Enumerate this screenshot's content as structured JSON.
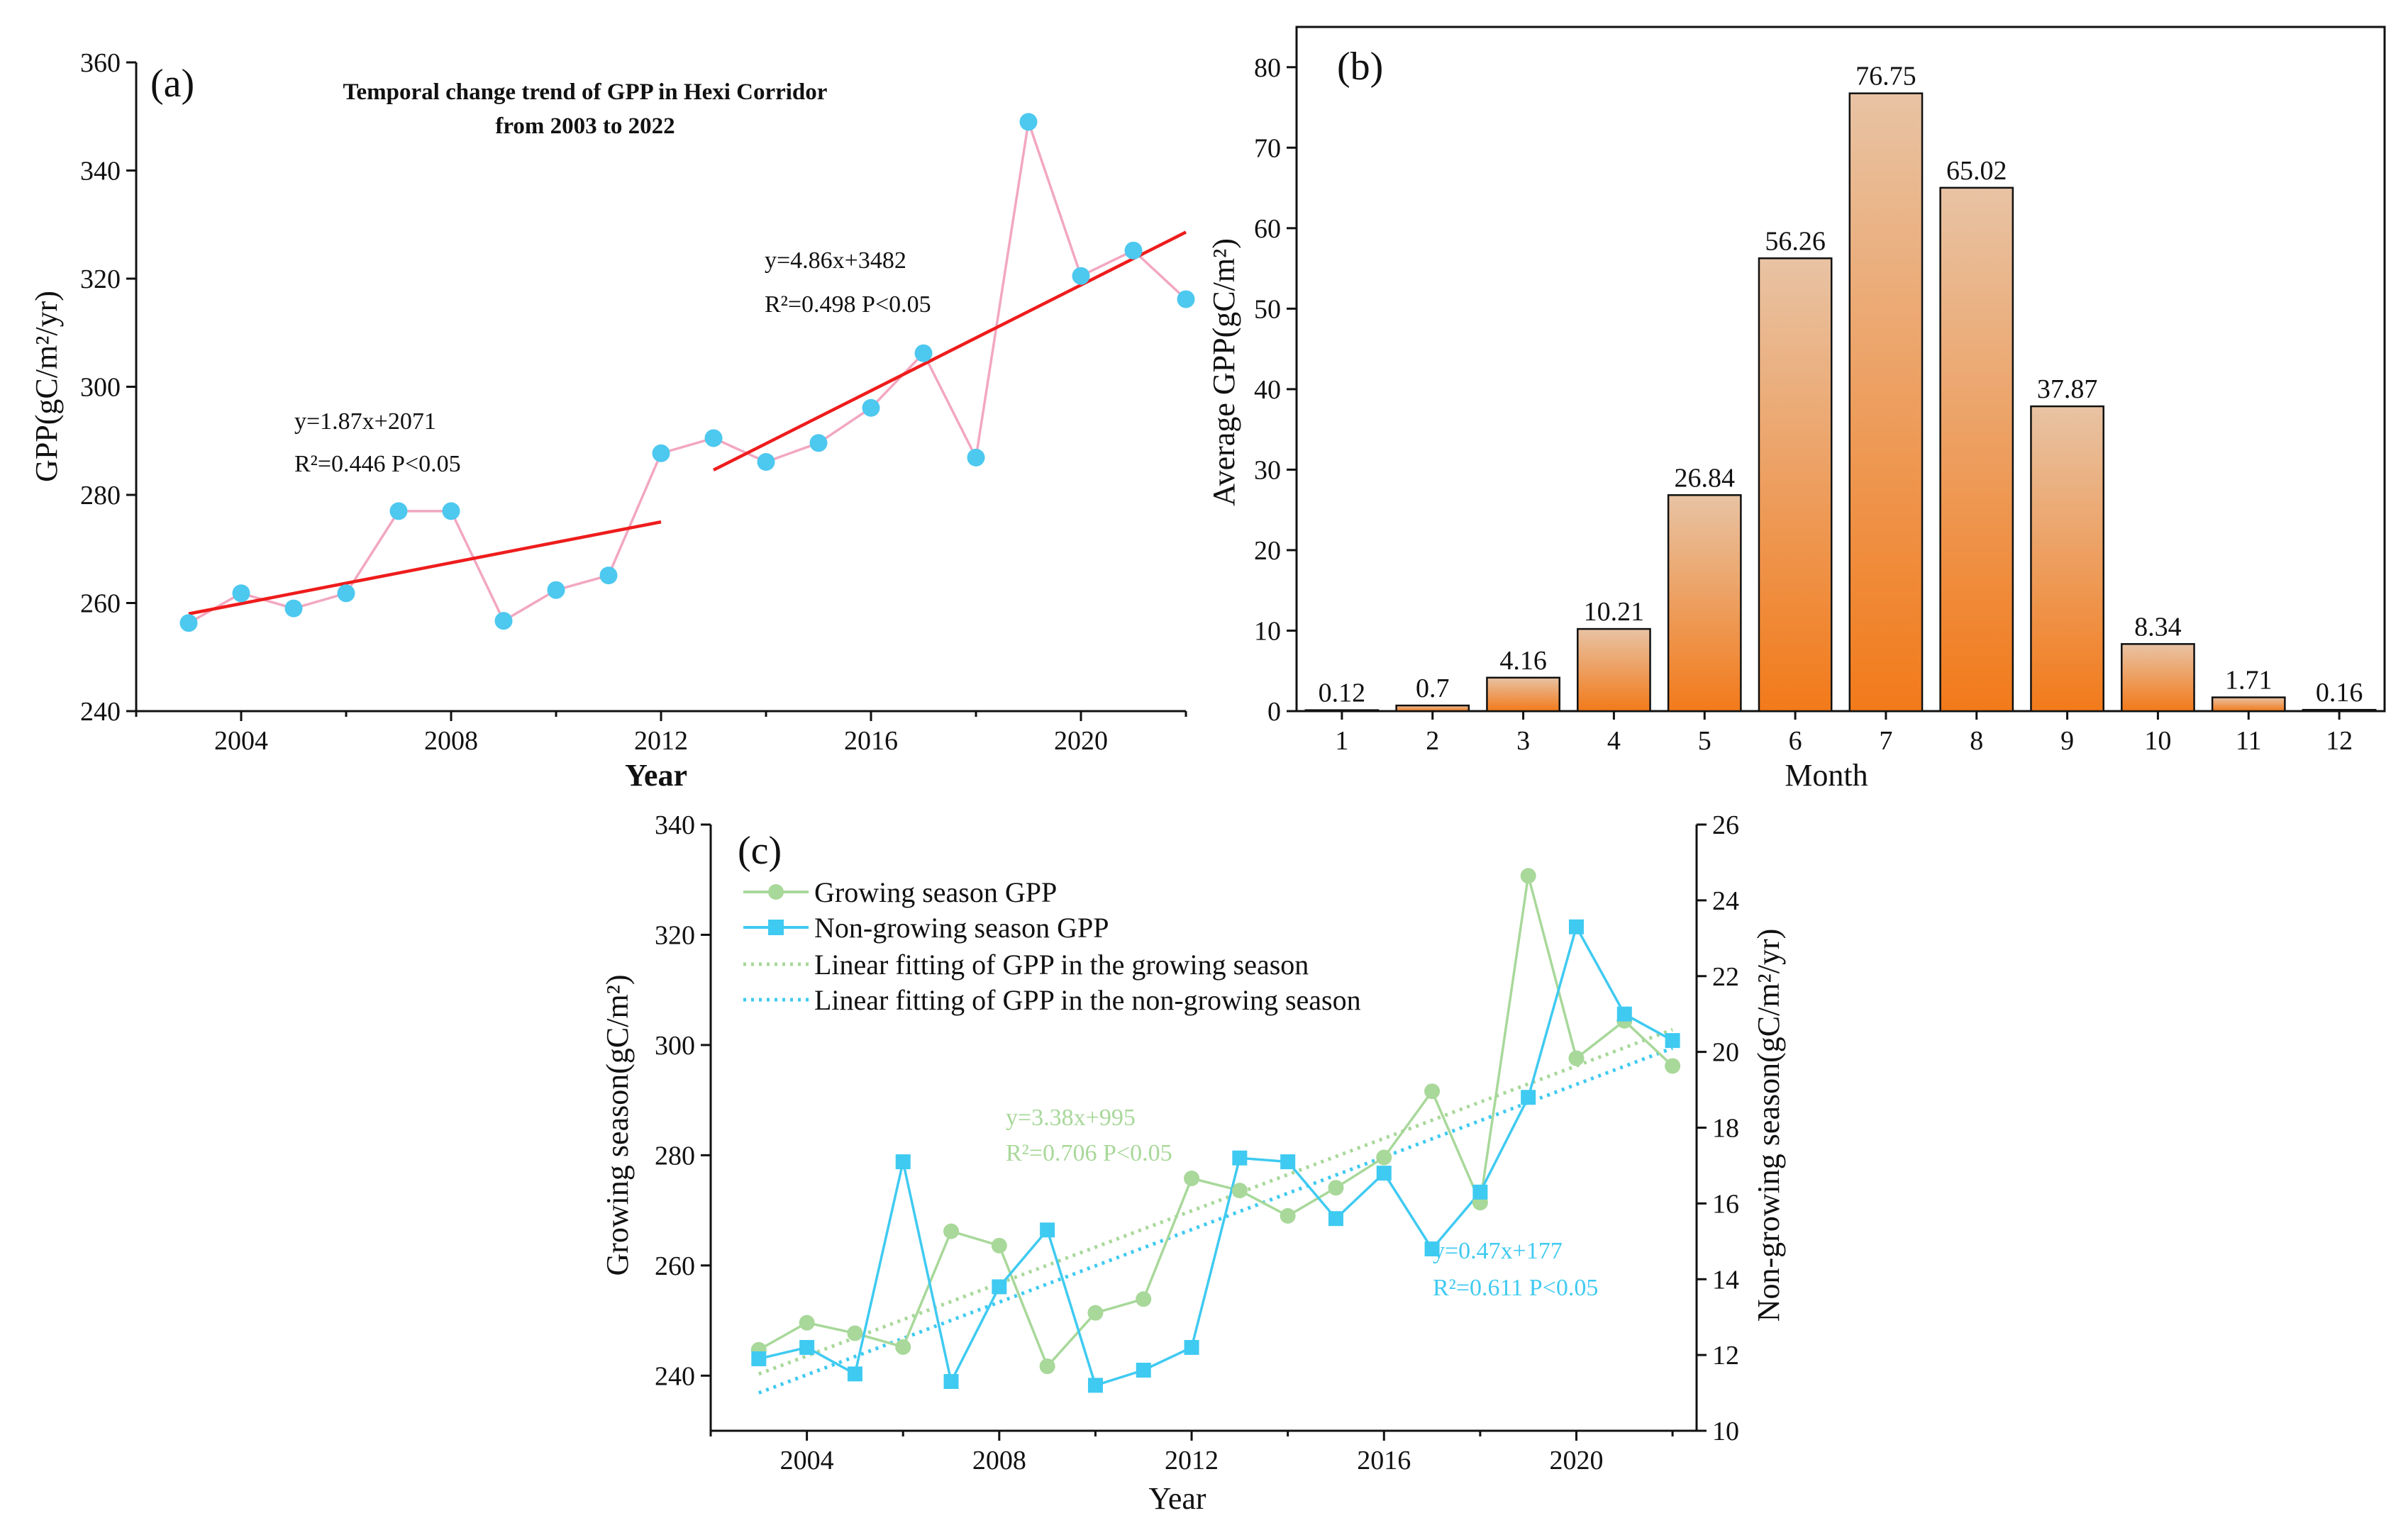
{
  "chart_data": [
    {
      "type": "line",
      "panel_label": "(a)",
      "title": [
        "Temporal change trend of GPP in Hexi Corridor",
        "from 2003 to 2022"
      ],
      "xlabel": "Year",
      "ylabel": "GPP(gC/m²/yr)",
      "xlim": [
        2002,
        2022
      ],
      "ylim": [
        240,
        360
      ],
      "xticks": [
        2004,
        2008,
        2012,
        2016,
        2020
      ],
      "yticks": [
        240,
        260,
        280,
        300,
        320,
        340,
        360
      ],
      "series": [
        {
          "name": "GPP",
          "color": "#f2a7c0",
          "marker_color": "#4dc8ef",
          "x": [
            2003,
            2004,
            2005,
            2006,
            2007,
            2008,
            2009,
            2010,
            2011,
            2012,
            2013,
            2014,
            2015,
            2016,
            2017,
            2018,
            2019,
            2020,
            2021,
            2022
          ],
          "values": [
            256.3,
            261.8,
            259.0,
            261.8,
            277.0,
            277.0,
            256.7,
            262.4,
            265.1,
            287.7,
            290.5,
            286.1,
            289.6,
            296.1,
            306.2,
            286.9,
            349.0,
            320.5,
            325.2,
            316.2
          ]
        }
      ],
      "fits": [
        {
          "x": [
            2003,
            2012
          ],
          "y": [
            258.0,
            275.0
          ],
          "color": "#ee1c1c",
          "equation": "y=1.87x+2071",
          "r2": "R²=0.446 P<0.05"
        },
        {
          "x": [
            2013,
            2022
          ],
          "y": [
            284.6,
            328.6
          ],
          "color": "#ee1c1c",
          "equation": "y=4.86x+3482",
          "r2": "R²=0.498 P<0.05"
        }
      ]
    },
    {
      "type": "bar",
      "panel_label": "(b)",
      "xlabel": "Month",
      "ylabel": "Average GPP(gC/m²)",
      "ylim": [
        0,
        85
      ],
      "yticks": [
        0,
        10,
        20,
        30,
        40,
        50,
        60,
        70,
        80
      ],
      "categories": [
        "1",
        "2",
        "3",
        "4",
        "5",
        "6",
        "7",
        "8",
        "9",
        "10",
        "11",
        "12"
      ],
      "values": [
        0.12,
        0.7,
        4.16,
        10.21,
        26.84,
        56.26,
        76.75,
        65.02,
        37.87,
        8.34,
        1.71,
        0.16
      ],
      "data_labels": [
        "0.12",
        "0.7",
        "4.16",
        "10.21",
        "26.84",
        "56.26",
        "76.75",
        "65.02",
        "37.87",
        "8.34",
        "1.71",
        "0.16"
      ],
      "bar_gradient": [
        "#e8c3a4",
        "#f27a1a"
      ]
    },
    {
      "type": "line",
      "panel_label": "(c)",
      "xlabel": "Year",
      "ylabel": "Growing season(gC/m²)",
      "y2label": "Non-growing season(gC/m²/yr)",
      "xlim": [
        2002,
        2022.5
      ],
      "ylim": [
        230,
        340
      ],
      "y2lim": [
        10,
        26
      ],
      "xticks": [
        2004,
        2008,
        2012,
        2016,
        2020
      ],
      "yticks": [
        240,
        260,
        280,
        300,
        320,
        340
      ],
      "y2ticks": [
        10,
        12,
        14,
        16,
        18,
        20,
        22,
        24,
        26
      ],
      "legend": [
        "Growing season GPP",
        "Non-growing season GPP",
        "Linear fitting of GPP in the growing season",
        "Linear fitting of GPP in the non-growing season"
      ],
      "series": [
        {
          "name": "Growing season GPP",
          "axis": "left",
          "color": "#a8d89a",
          "x": [
            2003,
            2004,
            2005,
            2006,
            2007,
            2008,
            2009,
            2010,
            2011,
            2012,
            2013,
            2014,
            2015,
            2016,
            2017,
            2018,
            2019,
            2020,
            2021,
            2022
          ],
          "values": [
            244.7,
            249.6,
            247.7,
            245.2,
            266.2,
            263.6,
            241.7,
            251.4,
            253.9,
            275.8,
            273.6,
            269.0,
            274.1,
            279.6,
            291.6,
            271.4,
            330.7,
            297.6,
            304.4,
            296.2
          ]
        },
        {
          "name": "Non-growing season GPP",
          "axis": "right",
          "color": "#3fcaf1",
          "x": [
            2003,
            2004,
            2005,
            2006,
            2007,
            2008,
            2009,
            2010,
            2011,
            2012,
            2013,
            2014,
            2015,
            2016,
            2017,
            2018,
            2019,
            2020,
            2021,
            2022
          ],
          "values": [
            11.9,
            12.2,
            11.5,
            17.1,
            11.3,
            13.8,
            15.3,
            11.2,
            11.6,
            12.2,
            17.2,
            17.1,
            15.6,
            16.8,
            14.8,
            16.3,
            18.8,
            23.3,
            21.0,
            20.3
          ]
        }
      ],
      "fits": [
        {
          "axis": "left",
          "x": [
            2003,
            2022
          ],
          "y": [
            240.3,
            302.8
          ],
          "color": "#a8d89a",
          "equation": "y=3.38x+995",
          "r2": "R²=0.706 P<0.05"
        },
        {
          "axis": "right",
          "x": [
            2003,
            2022
          ],
          "y": [
            11.0,
            20.1
          ],
          "color": "#3fcaf1",
          "equation": "y=0.47x+177",
          "r2": "R²=0.611 P<0.05"
        }
      ]
    }
  ]
}
